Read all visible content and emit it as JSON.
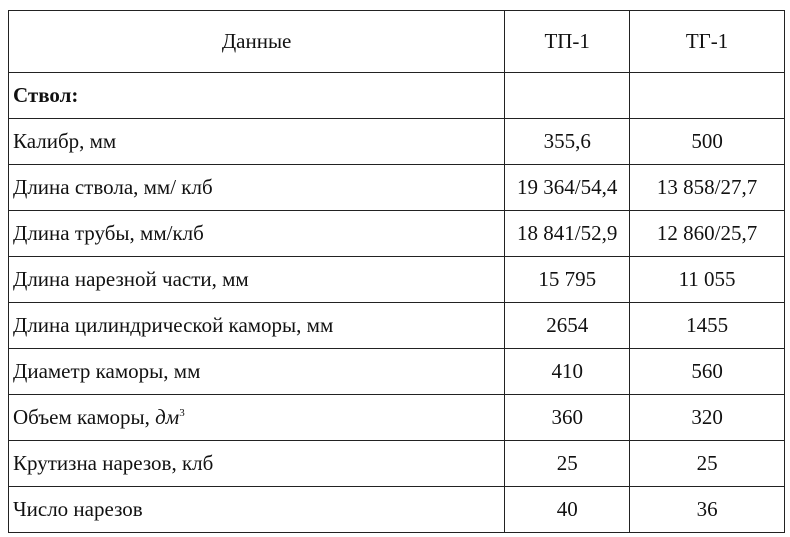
{
  "table": {
    "headers": [
      "Данные",
      "ТП-1",
      "ТГ-1"
    ],
    "section": "Ствол:",
    "rows": [
      {
        "label": "Калибр, мм",
        "tp1": "355,6",
        "tg1": "500"
      },
      {
        "label": "Длина ствола, мм/ клб",
        "tp1": "19 364/54,4",
        "tg1": "13 858/27,7"
      },
      {
        "label": "Длина трубы, мм/клб",
        "tp1": "18 841/52,9",
        "tg1": "12 860/25,7"
      },
      {
        "label": "Длина нарезной части, мм",
        "tp1": "15 795",
        "tg1": "11 055"
      },
      {
        "label": "Длина цилиндрической каморы, мм",
        "tp1": "2654",
        "tg1": "1455"
      },
      {
        "label": "Диаметр каморы, мм",
        "tp1": "410",
        "tg1": "560"
      },
      {
        "label": "Объем каморы, ",
        "unit": "дм",
        "unit_sup": "3",
        "tp1": "360",
        "tg1": "320"
      },
      {
        "label": "Крутизна нарезов, клб",
        "tp1": "25",
        "tg1": "25"
      },
      {
        "label": "Число нарезов",
        "tp1": "40",
        "tg1": "36"
      }
    ]
  }
}
